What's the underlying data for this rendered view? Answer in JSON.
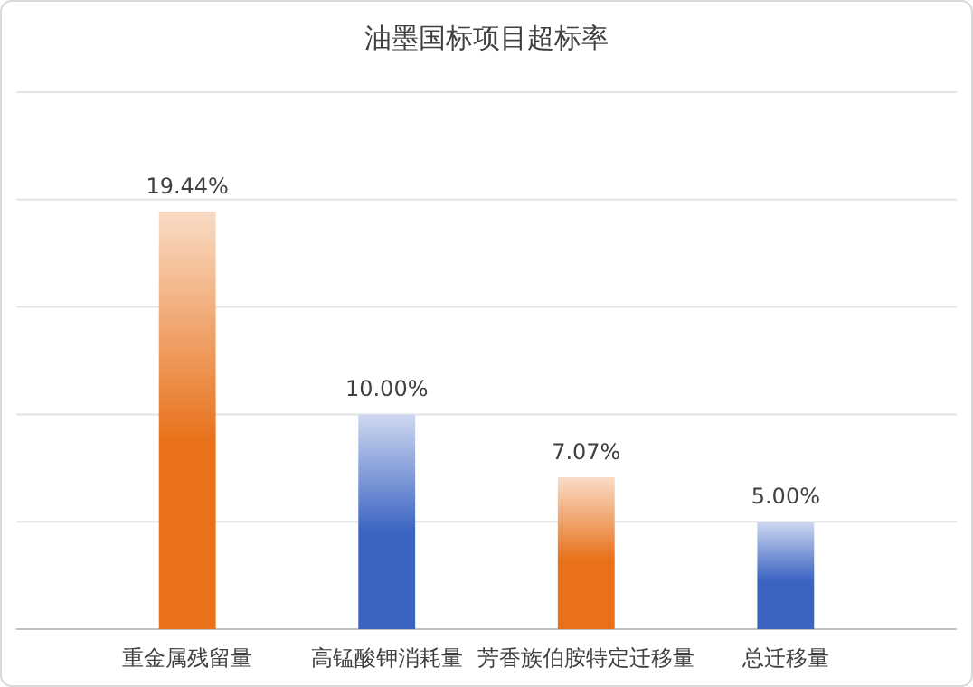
{
  "chart_data": {
    "type": "bar",
    "title": "油墨国标项目超标率",
    "categories": [
      "重金属残留量",
      "高锰酸钾消耗量",
      "芳香族伯胺特定迁移量",
      "总迁移量"
    ],
    "values": [
      19.44,
      10.0,
      7.07,
      5.0
    ],
    "value_labels": [
      "19.44%",
      "10.00%",
      "7.07%",
      "5.00%"
    ],
    "colors": [
      "#e8711a",
      "#3a63c2",
      "#e8711a",
      "#3a63c2"
    ],
    "ylim": [
      0,
      25
    ],
    "yticks": [
      {
        "value": 0,
        "label": null
      },
      {
        "value": 5,
        "label": null
      },
      {
        "value": 10,
        "label": null
      },
      {
        "value": 15,
        "label": null
      },
      {
        "value": 20,
        "label": null
      },
      {
        "value": 25,
        "label": null
      }
    ],
    "grid": "y",
    "tick_labels": "x"
  }
}
